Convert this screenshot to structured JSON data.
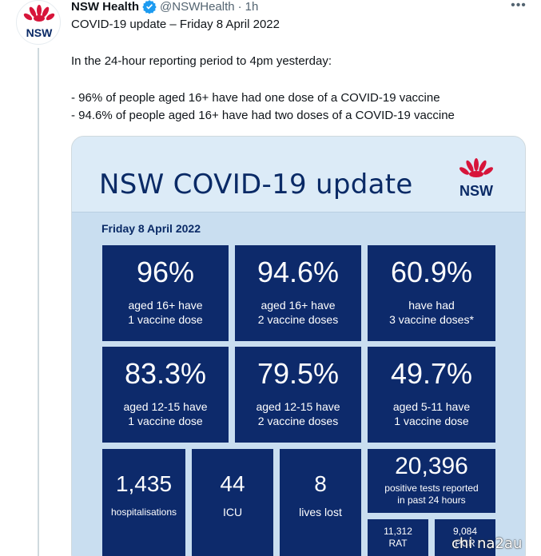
{
  "tweet": {
    "author_name": "NSW Health",
    "handle": "@NSWHealth",
    "dot": "·",
    "time": "1h",
    "more": "•••",
    "lines": [
      "COVID-19 update – Friday 8 April 2022",
      "In the 24-hour reporting period to 4pm yesterday:",
      "- 96% of people aged 16+ have had one dose of a COVID-19 vaccine",
      "- 94.6% of people aged 16+ have had two doses of a COVID-19 vaccine"
    ]
  },
  "logo": {
    "text": "NSW",
    "petal_color": "#d7153a",
    "text_color": "#0a2a66"
  },
  "card": {
    "title": "NSW COVID-19 update",
    "date": "Friday 8 April 2022",
    "row1": [
      {
        "value": "96%",
        "label1": "aged 16+ have",
        "label2": "1 vaccine dose"
      },
      {
        "value": "94.6%",
        "label1": "aged 16+ have",
        "label2": "2 vaccine doses"
      },
      {
        "value": "60.9%",
        "label1": "have had",
        "label2": "3 vaccine doses*"
      }
    ],
    "row2": [
      {
        "value": "83.3%",
        "label1": "aged 12-15 have",
        "label2": "1 vaccine dose"
      },
      {
        "value": "79.5%",
        "label1": "aged 12-15 have",
        "label2": "2 vaccine doses"
      },
      {
        "value": "49.7%",
        "label1": "aged 5-11 have",
        "label2": "1 vaccine dose"
      }
    ],
    "row3": {
      "hospitalisations": {
        "value": "1,435",
        "label": "hospitalisations"
      },
      "icu": {
        "value": "44",
        "label": "ICU"
      },
      "lives_lost": {
        "value": "8",
        "label": "lives lost"
      },
      "positive_tests": {
        "value": "20,396",
        "label1": "positive tests reported",
        "label2": "in past 24 hours"
      },
      "rat": {
        "value": "11,312",
        "label": "RAT"
      },
      "pcr": {
        "value": "9,084",
        "label": "PCR"
      }
    }
  },
  "watermark": "chi na2au",
  "colors": {
    "tile": "#0d2a6b",
    "card_bg": "#c9def0",
    "verified": "#1d9bf0"
  }
}
